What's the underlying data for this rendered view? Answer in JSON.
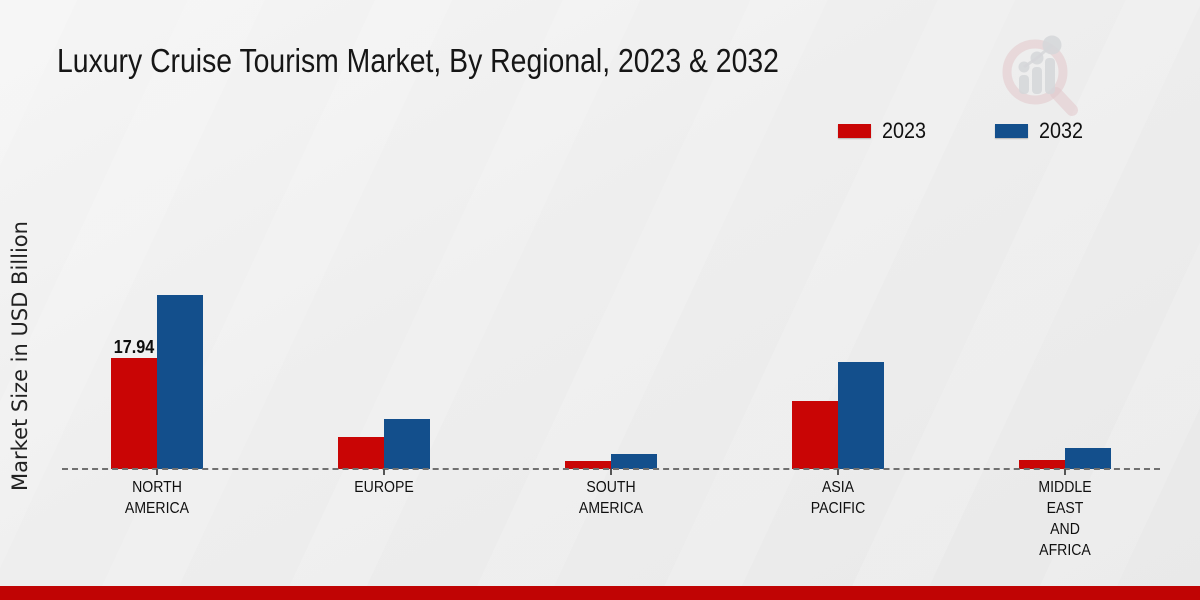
{
  "title": "Luxury Cruise Tourism Market, By Regional, 2023 & 2032",
  "ylabel": "Market Size in USD Billion",
  "legend": {
    "items": [
      {
        "label": "2023",
        "color": "#c90505"
      },
      {
        "label": "2032",
        "color": "#134f8c"
      }
    ]
  },
  "chart_data": {
    "type": "bar",
    "title": "Luxury Cruise Tourism Market, By Regional, 2023 & 2032",
    "ylabel": "Market Size in USD Billion",
    "categories": [
      "NORTH AMERICA",
      "EUROPE",
      "SOUTH AMERICA",
      "ASIA PACIFIC",
      "MIDDLE EAST AND AFRICA"
    ],
    "category_label_lines": [
      [
        "NORTH",
        "AMERICA"
      ],
      [
        "EUROPE"
      ],
      [
        "SOUTH",
        "AMERICA"
      ],
      [
        "ASIA",
        "PACIFIC"
      ],
      [
        "MIDDLE",
        "EAST",
        "AND",
        "AFRICA"
      ]
    ],
    "series": [
      {
        "name": "2023",
        "color": "#c90505",
        "values": [
          17.94,
          5.2,
          1.35,
          11.0,
          1.45
        ]
      },
      {
        "name": "2032",
        "color": "#134f8c",
        "values": [
          28.1,
          8.1,
          2.4,
          17.3,
          3.35
        ]
      }
    ],
    "annotations": [
      {
        "series": "2023",
        "category": "NORTH AMERICA",
        "text": "17.94"
      }
    ],
    "ylim": [
      0,
      30
    ],
    "grid": false,
    "baseline_style": "dashed",
    "legend_position": "top-right"
  },
  "watermark": {
    "name": "market-research-magnifier-logo"
  },
  "footer": {
    "band_color": "#c00404"
  }
}
